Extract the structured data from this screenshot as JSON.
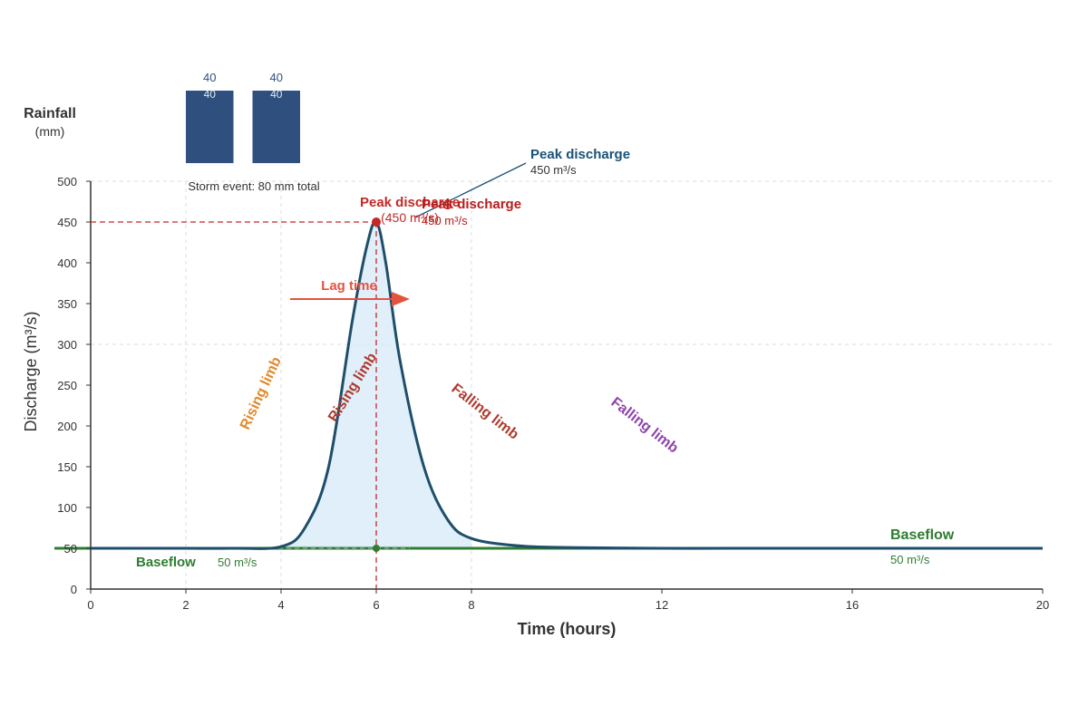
{
  "chart_data": {
    "type": "line",
    "xlabel": "Time (hours)",
    "ylabel": "Discharge (m³/s)",
    "xlim": [
      0,
      20
    ],
    "ylim": [
      0,
      500
    ],
    "x_ticks": [
      0,
      2,
      4,
      6,
      8,
      12,
      16,
      20
    ],
    "y_ticks": [
      0,
      50,
      100,
      150,
      200,
      250,
      300,
      350,
      400,
      450,
      500
    ],
    "grid": true,
    "hydrograph": {
      "x": [
        0,
        1,
        2,
        3,
        4,
        4.5,
        5,
        5.5,
        5.8,
        6,
        6.2,
        6.5,
        7,
        7.5,
        8,
        9,
        10,
        12,
        14,
        16,
        18,
        20
      ],
      "y": [
        50,
        50,
        50,
        50,
        52,
        75,
        150,
        330,
        420,
        450,
        400,
        280,
        150,
        85,
        62,
        53,
        51,
        50,
        50,
        50,
        50,
        50
      ]
    },
    "rainfall": {
      "label": "Rainfall",
      "unit": "(mm)",
      "bars": [
        {
          "x_start": 2,
          "x_end": 3,
          "value": 40,
          "label": "40",
          "inner_label": "40"
        },
        {
          "x_start": 3.4,
          "x_end": 4.4,
          "value": 40,
          "label": "40",
          "inner_label": "40"
        }
      ],
      "caption": "Storm event: 80 mm total"
    },
    "baseflow": {
      "value": 50,
      "label": "Baseflow",
      "value_label": "50 m³/s"
    },
    "peak": {
      "x": 6,
      "y": 450
    },
    "annotations": {
      "peak_callout_title": "Peak discharge",
      "peak_callout_value": "450 m³/s",
      "peak_label_title": "Peak discharge",
      "peak_label_value": "(450 m³/s)",
      "peak_label2_title": "Peak discharge",
      "peak_label2_value": "450 m³/s",
      "lag_time": "Lag time",
      "rising_limb": "Rising limb",
      "falling_limb": "Falling limb",
      "baseflow_right": "Baseflow",
      "baseflow_right_value": "50 m³/s"
    },
    "colors": {
      "hydrograph": "#1f4e6b",
      "rain": "#2f4f7f",
      "baseflow": "#2e7d32",
      "peak": "#c62828",
      "lag": "#e4533f",
      "rising_orange": "#e08a2c",
      "rising_red": "#b03a2e",
      "falling_red": "#b03a2e",
      "falling_purple": "#8e44ad",
      "callout": "#1a5276",
      "fill": "#d6e9f8"
    }
  }
}
